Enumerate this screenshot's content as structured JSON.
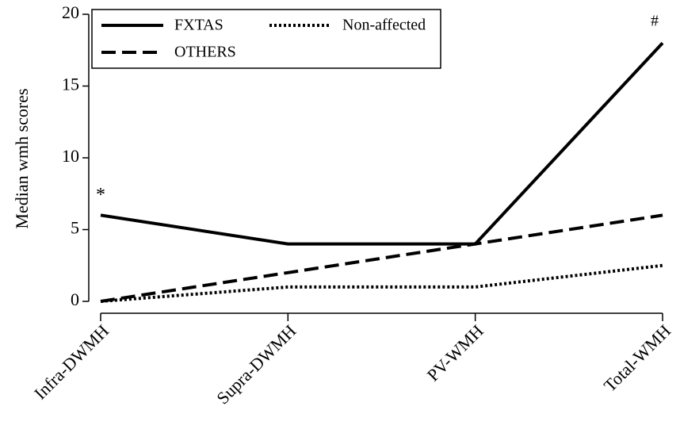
{
  "chart_data": {
    "type": "line",
    "y_label": "Median wmh scores",
    "categories": [
      "Infra-DWMH",
      "Supra-DWMH",
      "PV-WMH",
      "Total-WMH"
    ],
    "series": [
      {
        "name": "FXTAS",
        "color": "#000000",
        "style": "solid",
        "values": [
          6,
          4,
          4,
          18
        ]
      },
      {
        "name": "Non-affected",
        "color": "#000000",
        "style": "dotted",
        "values": [
          0,
          1,
          1,
          2.5
        ]
      },
      {
        "name": "OTHERS",
        "color": "#000000",
        "style": "dashed",
        "values": [
          0,
          2,
          4,
          6
        ]
      }
    ],
    "annotations": [
      "*",
      "#"
    ],
    "ylim": [
      0,
      20
    ],
    "yticks": [
      0,
      5,
      10,
      15,
      20
    ],
    "grid": false
  }
}
